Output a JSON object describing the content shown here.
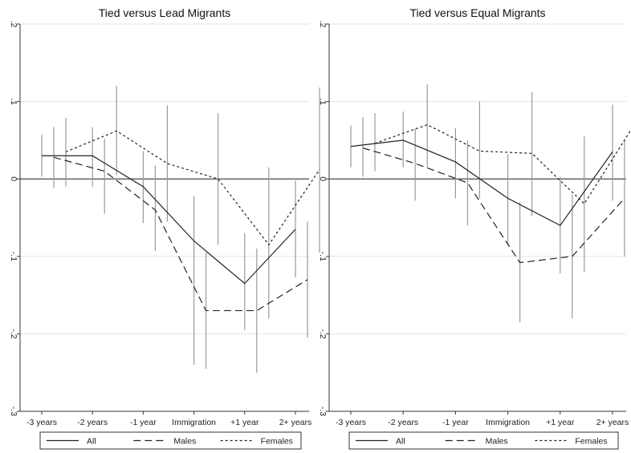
{
  "chart_data": [
    {
      "type": "line",
      "title": "Tied versus Lead Migrants",
      "categories": [
        "-3 years",
        "-2 years",
        "-1 year",
        "Immigration",
        "+1 year",
        "2+ years"
      ],
      "yticks": [
        ".2",
        ".1",
        "0",
        "-.1",
        "-.2",
        "-.3"
      ],
      "ylim": [
        -0.3,
        0.2
      ],
      "grid": true,
      "zero_line": true,
      "series": [
        {
          "name": "All",
          "style": "solid",
          "x_offset": 0,
          "values": [
            0.03,
            0.03,
            -0.01,
            -0.08,
            -0.135,
            -0.065
          ],
          "ci_low": [
            0.003,
            -0.01,
            -0.057,
            -0.24,
            -0.195,
            -0.127
          ],
          "ci_high": [
            0.057,
            0.067,
            0.036,
            -0.022,
            -0.07,
            -0.002
          ]
        },
        {
          "name": "Males",
          "style": "dashed",
          "x_offset": 1,
          "values": [
            0.028,
            0.01,
            -0.04,
            -0.17,
            -0.17,
            -0.13
          ],
          "ci_low": [
            -0.012,
            -0.045,
            -0.093,
            -0.245,
            -0.25,
            -0.205
          ],
          "ci_high": [
            0.067,
            0.052,
            0.017,
            -0.095,
            -0.09,
            -0.055
          ]
        },
        {
          "name": "Females",
          "style": "dotted",
          "x_offset": 2,
          "values": [
            0.035,
            0.062,
            0.02,
            0.0,
            -0.085,
            0.012
          ],
          "ci_low": [
            -0.01,
            0.005,
            -0.055,
            -0.085,
            -0.18,
            -0.095
          ],
          "ci_high": [
            0.079,
            0.12,
            0.095,
            0.085,
            0.015,
            0.118
          ]
        }
      ]
    },
    {
      "type": "line",
      "title": "Tied versus Equal Migrants",
      "categories": [
        "-3 years",
        "-2 years",
        "-1 year",
        "Immigration",
        "+1 year",
        "2+ years"
      ],
      "yticks": [
        ".2",
        ".1",
        "0",
        "-.1",
        "-.2",
        "-.3"
      ],
      "ylim": [
        -0.3,
        0.2
      ],
      "grid": true,
      "zero_line": true,
      "series": [
        {
          "name": "All",
          "style": "solid",
          "x_offset": 0,
          "values": [
            0.042,
            0.05,
            0.022,
            -0.025,
            -0.06,
            0.035
          ],
          "ci_low": [
            0.015,
            0.015,
            -0.025,
            -0.085,
            -0.122,
            -0.028
          ],
          "ci_high": [
            0.069,
            0.087,
            0.066,
            0.032,
            0.003,
            0.096
          ]
        },
        {
          "name": "Males",
          "style": "dashed",
          "x_offset": 1,
          "values": [
            0.04,
            0.02,
            -0.005,
            -0.108,
            -0.1,
            -0.025
          ],
          "ci_low": [
            0.003,
            -0.028,
            -0.06,
            -0.185,
            -0.18,
            -0.1
          ],
          "ci_high": [
            0.08,
            0.065,
            0.05,
            -0.03,
            -0.02,
            0.05
          ]
        },
        {
          "name": "Females",
          "style": "dotted",
          "x_offset": 2,
          "values": [
            0.046,
            0.07,
            0.036,
            0.033,
            -0.032,
            0.075
          ],
          "ci_low": [
            0.01,
            0.015,
            -0.025,
            -0.048,
            -0.12,
            -0.012
          ],
          "ci_high": [
            0.085,
            0.122,
            0.1,
            0.112,
            0.055,
            0.165
          ]
        }
      ]
    }
  ],
  "legend": {
    "position": "bottom",
    "items": [
      {
        "label": "All",
        "style": "solid"
      },
      {
        "label": "Males",
        "style": "dashed"
      },
      {
        "label": "Females",
        "style": "dotted"
      }
    ]
  },
  "colors": {
    "line": "#222222",
    "ci": "#9a9a9a",
    "grid": "#e3e3e3",
    "frame": "#333333"
  }
}
